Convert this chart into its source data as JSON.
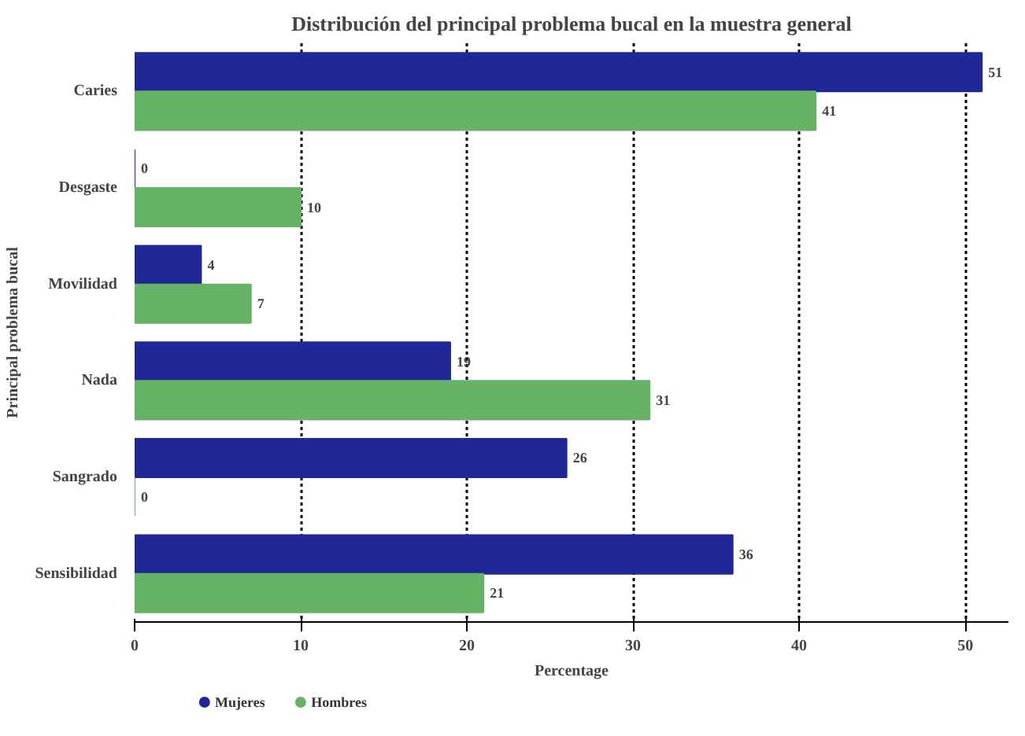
{
  "chart_data": {
    "type": "bar",
    "orientation": "horizontal",
    "title": "Distribución del principal problema bucal en la muestra general",
    "xlabel": "Percentage",
    "ylabel": "Principal problema bucal",
    "categories": [
      "Caries",
      "Desgaste",
      "Movilidad",
      "Nada",
      "Sangrado",
      "Sensibilidad"
    ],
    "series": [
      {
        "name": "Mujeres",
        "color": "#1f2896",
        "values": [
          51,
          0,
          4,
          19,
          26,
          36
        ]
      },
      {
        "name": "Hombres",
        "color": "#66b266",
        "values": [
          41,
          10,
          7,
          31,
          0,
          21
        ]
      }
    ],
    "xlim": [
      0,
      52.6
    ],
    "xticks": [
      0,
      10,
      20,
      30,
      40,
      50
    ],
    "grid": "x",
    "legend": "bottom left",
    "data_labels": true
  }
}
